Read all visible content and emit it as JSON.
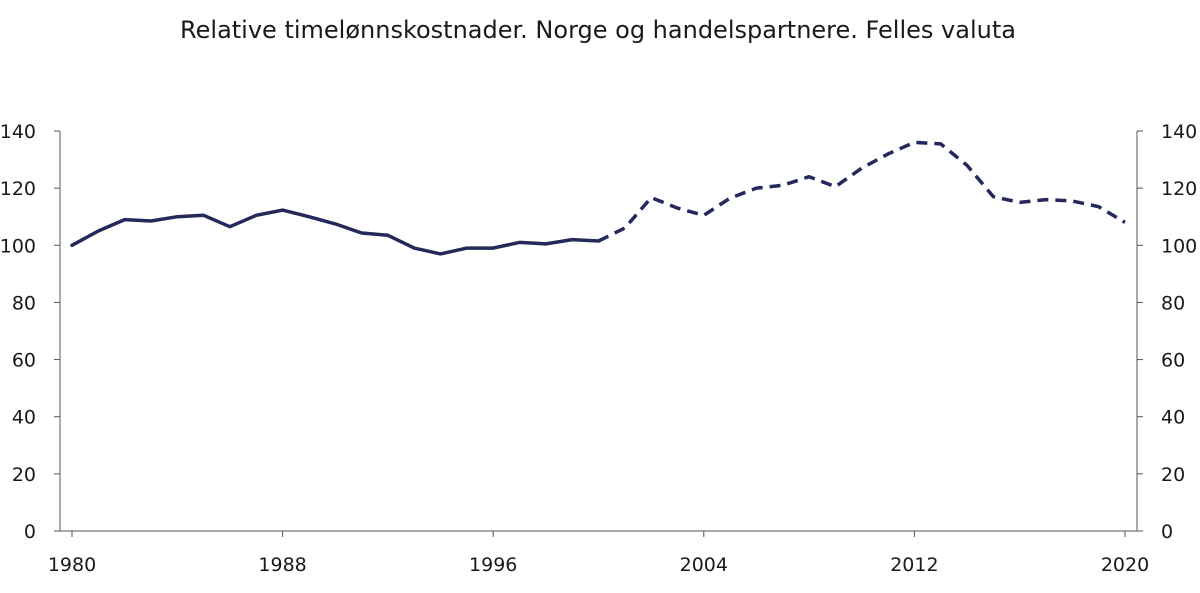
{
  "chart_data": {
    "type": "line",
    "title": "Relative timelønnskostnader. Norge og handelspartnere. Felles valuta",
    "xlabel": "",
    "ylabel": "",
    "xlim": [
      1980,
      2020
    ],
    "ylim": [
      0,
      140
    ],
    "x_ticks": [
      "1980",
      "1988",
      "1996",
      "2004",
      "2012",
      "2020"
    ],
    "y_ticks": [
      "0",
      "20",
      "40",
      "60",
      "80",
      "100",
      "120",
      "140"
    ],
    "grid": false,
    "legend": "none",
    "series": [
      {
        "style": "solid",
        "color": "#24285b",
        "x": [
          1980,
          1981,
          1982,
          1983,
          1984,
          1985,
          1986,
          1987,
          1988,
          1989,
          1990,
          1991,
          1992,
          1993,
          1994,
          1995,
          1996,
          1997,
          1998,
          1999,
          2000
        ],
        "y": [
          100.0,
          105.0,
          109.0,
          108.5,
          110.0,
          110.5,
          106.5,
          110.5,
          112.3,
          110.0,
          107.5,
          104.3,
          103.5,
          99.0,
          97.0,
          99.0,
          99.0,
          101.0,
          100.5,
          102.0,
          101.5
        ]
      },
      {
        "style": "dashed",
        "color": "#24285b",
        "x": [
          2000,
          2001,
          2002,
          2003,
          2004,
          2005,
          2006,
          2007,
          2008,
          2009,
          2010,
          2011,
          2012,
          2013,
          2014,
          2015,
          2016,
          2017,
          2018,
          2019,
          2020
        ],
        "y": [
          101.5,
          106.0,
          116.7,
          113.0,
          110.5,
          116.5,
          120.0,
          121.0,
          124.0,
          120.5,
          127.0,
          132.0,
          136.0,
          135.5,
          128.0,
          117.0,
          115.0,
          116.0,
          115.5,
          113.5,
          108.0
        ]
      }
    ]
  }
}
